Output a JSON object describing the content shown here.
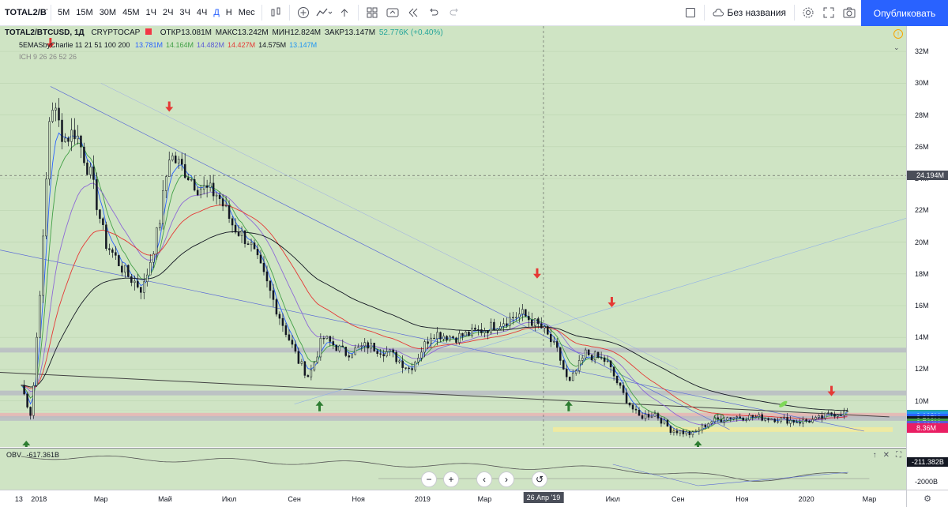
{
  "toolbar": {
    "symbol": "TOTAL2/BT",
    "intervals": [
      "5М",
      "15М",
      "30М",
      "45М",
      "1Ч",
      "2Ч",
      "3Ч",
      "4Ч",
      "Д",
      "Н",
      "Мес"
    ],
    "active_interval": "Д",
    "layout_name": "Без названия",
    "publish_label": "Опубликовать"
  },
  "legend": {
    "symbol": "TOTAL2/BTCUSD, 1Д",
    "exchange": "CRYPTOCAP",
    "open_label": "ОТКР",
    "open": "13.081M",
    "high_label": "МАКС",
    "high": "13.242M",
    "low_label": "МИН",
    "low": "12.824M",
    "close_label": "ЗАКР",
    "close": "13.147M",
    "change": "52.776K (+0.40%)",
    "ema_name": "5EMASbyCharlie 11 21 51 100 200",
    "ema_values": [
      {
        "value": "13.781M",
        "color": "#2962ff"
      },
      {
        "value": "14.164M",
        "color": "#43a047"
      },
      {
        "value": "14.482M",
        "color": "#5b5bd6"
      },
      {
        "value": "14.427M",
        "color": "#e53935"
      },
      {
        "value": "14.575M",
        "color": "#131722"
      },
      {
        "value": "13.147M",
        "color": "#2196f3"
      }
    ],
    "ichimoku": "ICH 9 26 26 52 26"
  },
  "price_axis": {
    "ticks": [
      "32M",
      "30M",
      "28M",
      "26M",
      "24M",
      "22M",
      "20M",
      "18M",
      "16M",
      "14M",
      "12M",
      "10M"
    ],
    "crosshair_label": "24.194M",
    "labels": [
      {
        "text": "9.162M",
        "color": "#26a69a",
        "value": 9.162
      },
      {
        "text": "9.162M",
        "color": "#2196f3",
        "value": 9.02
      },
      {
        "text": "8.895M",
        "color": "#2962ff",
        "value": 8.88
      },
      {
        "text": "8.783M",
        "color": "#131722",
        "value": 8.73
      },
      {
        "text": "8.742M",
        "color": "#43a047",
        "value": 8.59
      },
      {
        "text": "8.464M",
        "color": "#5b5bd6",
        "value": 8.44
      },
      {
        "text": "8.36M",
        "color": "#e91e63",
        "value": 8.29
      }
    ]
  },
  "obv": {
    "label": "OBV",
    "value": "-617.361B",
    "axis_value": "-211.382B",
    "axis_tick": "-2000B"
  },
  "time_axis": {
    "ticks": [
      "13",
      "2018",
      "Мар",
      "Май",
      "Июл",
      "Сен",
      "Ноя",
      "2019",
      "Мар",
      "Май",
      "Июл",
      "Сен",
      "Ноя",
      "2020",
      "Мар"
    ],
    "cursor_label": "26 Апр '19"
  },
  "chart_data": {
    "type": "candlestick",
    "title": "TOTAL2/BTCUSD, 1Д",
    "ylim": [
      7.5,
      33
    ],
    "y_unit": "M",
    "x_start": "2017-12",
    "x_end": "2020-03",
    "close_series": [
      {
        "date": "2017-12-15",
        "value": 11
      },
      {
        "date": "2017-12-25",
        "value": 9
      },
      {
        "date": "2018-01-05",
        "value": 20
      },
      {
        "date": "2018-01-12",
        "value": 29
      },
      {
        "date": "2018-01-25",
        "value": 26.5
      },
      {
        "date": "2018-02-05",
        "value": 27
      },
      {
        "date": "2018-02-20",
        "value": 24
      },
      {
        "date": "2018-03-05",
        "value": 20
      },
      {
        "date": "2018-03-25",
        "value": 18
      },
      {
        "date": "2018-04-10",
        "value": 17
      },
      {
        "date": "2018-04-25",
        "value": 21
      },
      {
        "date": "2018-05-05",
        "value": 25.5
      },
      {
        "date": "2018-05-20",
        "value": 24.5
      },
      {
        "date": "2018-06-01",
        "value": 23.5
      },
      {
        "date": "2018-06-20",
        "value": 23
      },
      {
        "date": "2018-07-05",
        "value": 21
      },
      {
        "date": "2018-07-20",
        "value": 20
      },
      {
        "date": "2018-08-05",
        "value": 17.5
      },
      {
        "date": "2018-08-20",
        "value": 15
      },
      {
        "date": "2018-09-05",
        "value": 12.5
      },
      {
        "date": "2018-09-15",
        "value": 11.5
      },
      {
        "date": "2018-09-28",
        "value": 14
      },
      {
        "date": "2018-10-20",
        "value": 13
      },
      {
        "date": "2018-11-10",
        "value": 13.5
      },
      {
        "date": "2018-12-01",
        "value": 13
      },
      {
        "date": "2018-12-20",
        "value": 12
      },
      {
        "date": "2019-01-10",
        "value": 14.3
      },
      {
        "date": "2019-02-01",
        "value": 14
      },
      {
        "date": "2019-03-01",
        "value": 14.5
      },
      {
        "date": "2019-04-05",
        "value": 15.5
      },
      {
        "date": "2019-04-26",
        "value": 14.5
      },
      {
        "date": "2019-05-10",
        "value": 13
      },
      {
        "date": "2019-05-20",
        "value": 11
      },
      {
        "date": "2019-06-05",
        "value": 13
      },
      {
        "date": "2019-06-25",
        "value": 12.5
      },
      {
        "date": "2019-07-10",
        "value": 10.5
      },
      {
        "date": "2019-07-25",
        "value": 9
      },
      {
        "date": "2019-08-10",
        "value": 9.2
      },
      {
        "date": "2019-08-25",
        "value": 8.2
      },
      {
        "date": "2019-09-15",
        "value": 7.9
      },
      {
        "date": "2019-10-01",
        "value": 8.7
      },
      {
        "date": "2019-10-20",
        "value": 9
      },
      {
        "date": "2019-11-10",
        "value": 9
      },
      {
        "date": "2019-12-01",
        "value": 8.9
      },
      {
        "date": "2019-12-25",
        "value": 8.7
      },
      {
        "date": "2020-01-10",
        "value": 8.8
      },
      {
        "date": "2020-01-25",
        "value": 9.2
      },
      {
        "date": "2020-02-10",
        "value": 9.3
      }
    ],
    "horizontal_zones": [
      {
        "value": 13.2,
        "color": "#b8bcc4"
      },
      {
        "value": 10.5,
        "color": "#b8bcc4"
      },
      {
        "value": 9.1,
        "color": "#e8b4b4"
      },
      {
        "value": 8.9,
        "color": "#b8bcc4"
      },
      {
        "value": 8.2,
        "color": "#f3eb9c"
      }
    ],
    "markers": [
      {
        "type": "down",
        "date": "2018-01-12",
        "value": 32.5,
        "color": "#e53935"
      },
      {
        "type": "down",
        "date": "2018-05-05",
        "value": 28.5,
        "color": "#e53935"
      },
      {
        "type": "down",
        "date": "2019-04-20",
        "value": 18,
        "color": "#e53935"
      },
      {
        "type": "down",
        "date": "2019-06-30",
        "value": 16.2,
        "color": "#e53935"
      },
      {
        "type": "down",
        "date": "2020-01-25",
        "value": 10.6,
        "color": "#e53935"
      },
      {
        "type": "up",
        "date": "2017-12-20",
        "value": 7.2,
        "color": "#2e7d32"
      },
      {
        "type": "up",
        "date": "2018-09-25",
        "value": 9.7,
        "color": "#2e7d32"
      },
      {
        "type": "up",
        "date": "2019-05-20",
        "value": 9.7,
        "color": "#2e7d32"
      },
      {
        "type": "up",
        "date": "2019-09-20",
        "value": 7.2,
        "color": "#2e7d32"
      }
    ]
  }
}
